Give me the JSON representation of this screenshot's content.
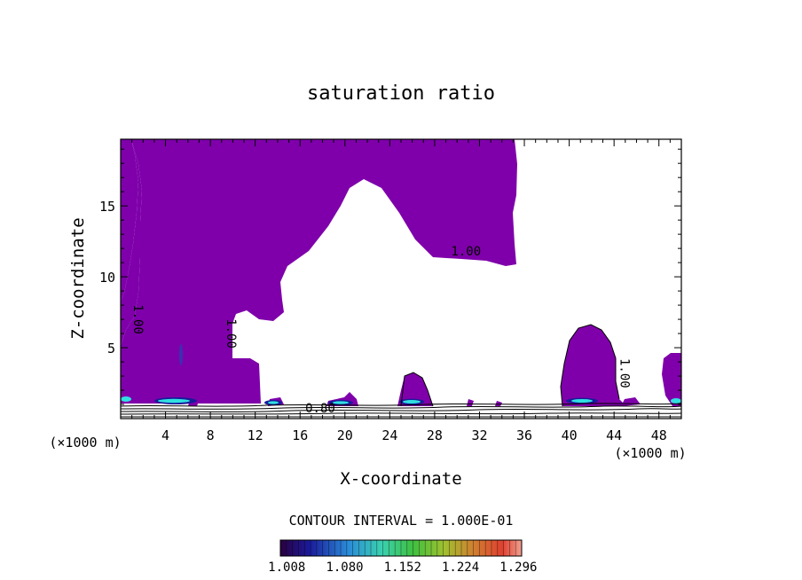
{
  "chart_data": {
    "type": "contour",
    "title": "saturation ratio",
    "xlabel": "X-coordinate",
    "ylabel": "Z-coordinate",
    "x_unit": "(×1000 m)",
    "xlim": [
      0,
      50
    ],
    "ylim": [
      0,
      19.7
    ],
    "x_ticks": [
      4,
      8,
      12,
      16,
      20,
      24,
      28,
      32,
      36,
      40,
      44,
      48
    ],
    "y_ticks": [
      5,
      10,
      15
    ],
    "contour_labels": [
      {
        "text": "1.00",
        "x": 1.2,
        "y": 7.0
      },
      {
        "text": "1.00",
        "x": 9.5,
        "y": 6.0
      },
      {
        "text": "1.00",
        "x": 30.8,
        "y": 11.5
      },
      {
        "text": "1.00",
        "x": 44.6,
        "y": 3.2
      },
      {
        "text": "0.80",
        "x": 17.8,
        "y": 0.45
      }
    ],
    "fill_color": "#7f00aa",
    "contour_interval_text": "CONTOUR INTERVAL = 1.000E-01",
    "colorbar": {
      "tick_labels": [
        "1.008",
        "1.080",
        "1.152",
        "1.224",
        "1.296"
      ],
      "values": [
        1.008,
        1.08,
        1.152,
        1.224,
        1.296
      ],
      "range": [
        1.0,
        1.3
      ]
    }
  }
}
